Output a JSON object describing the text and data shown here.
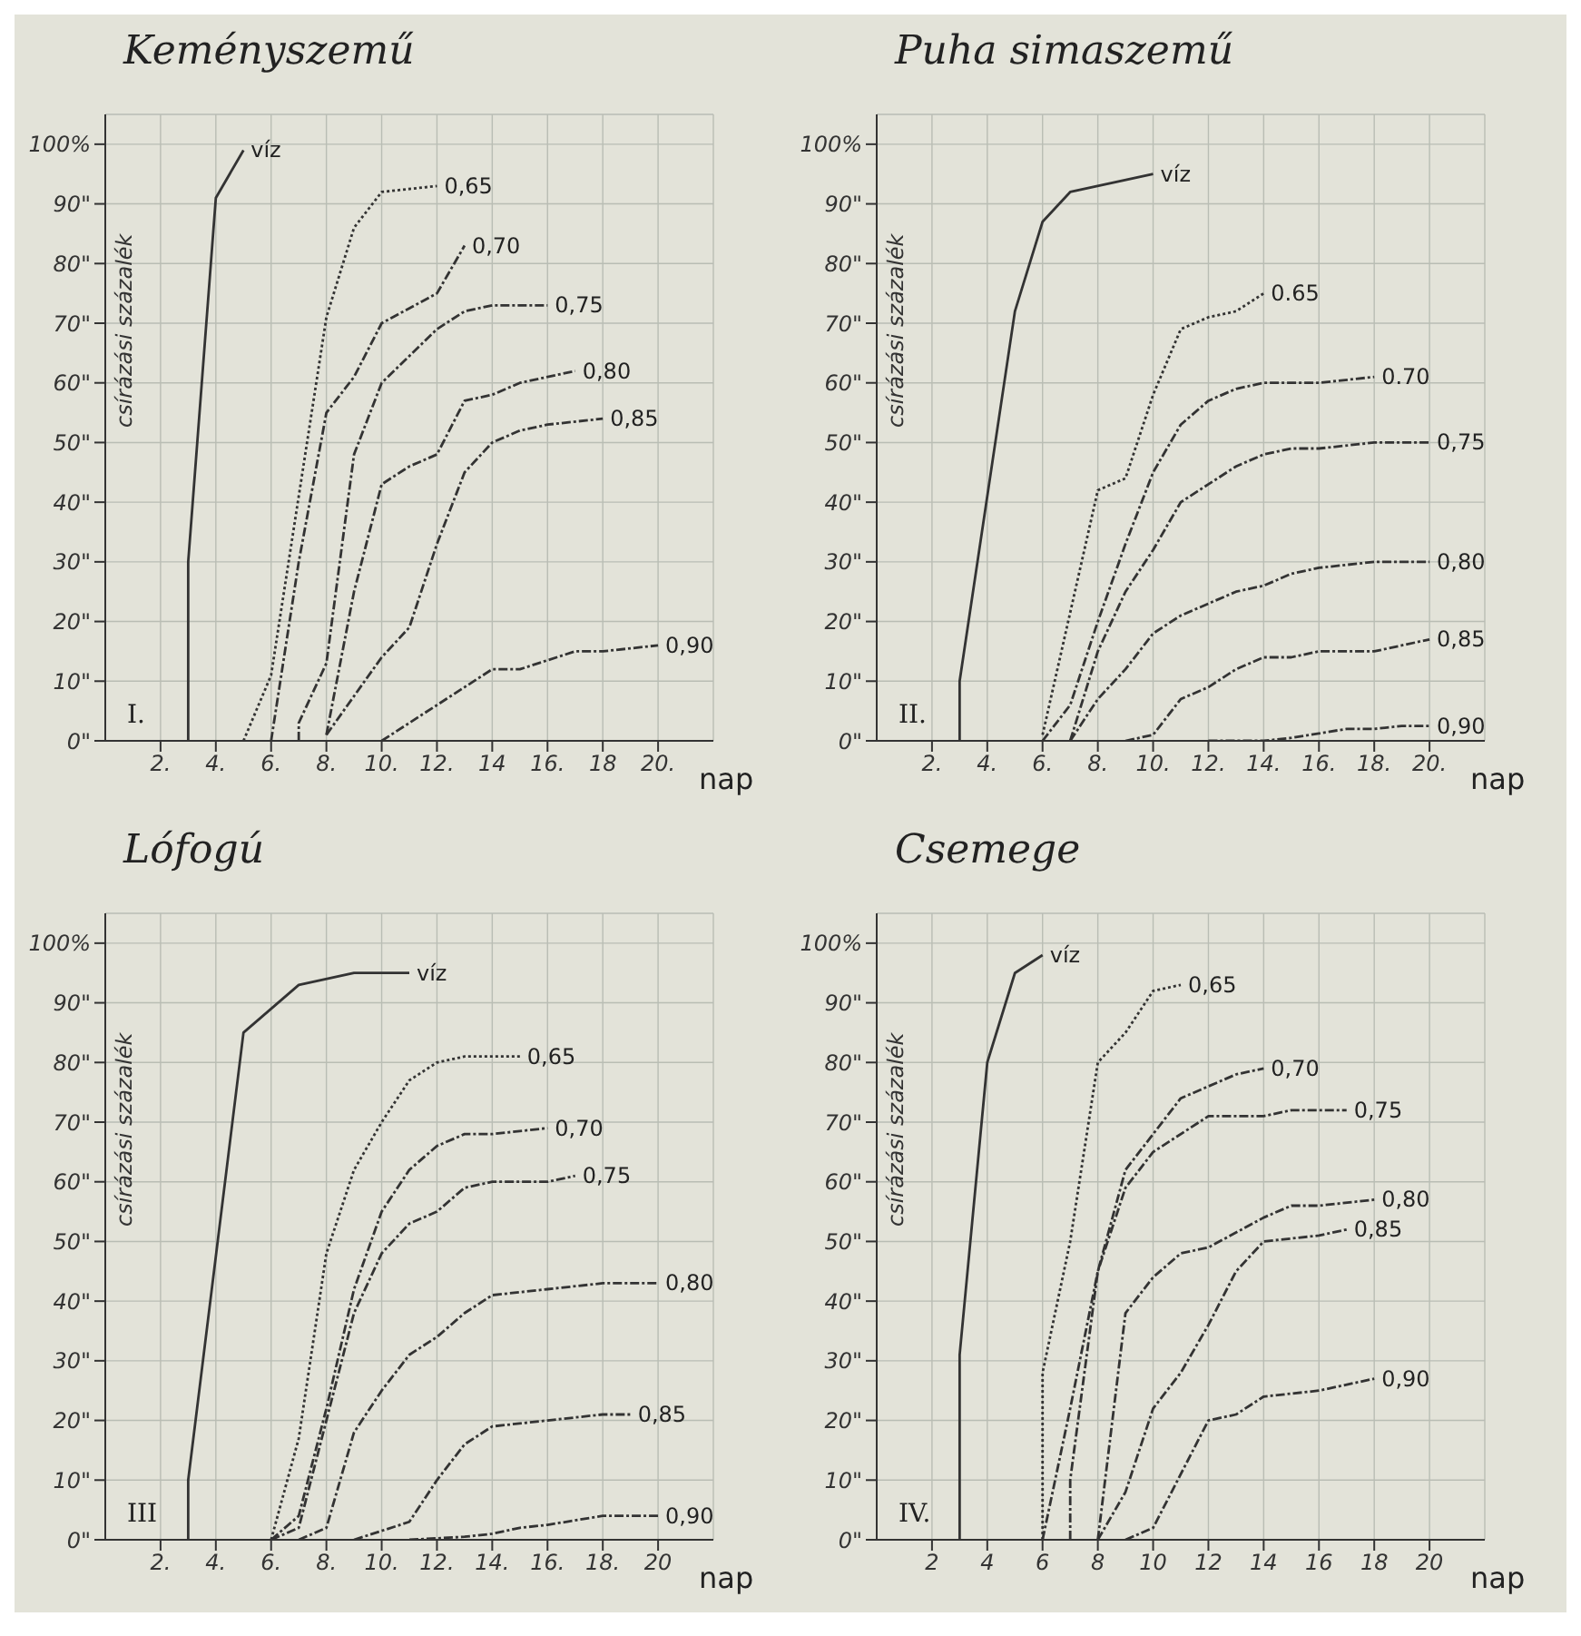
{
  "chart_data": [
    {
      "type": "line",
      "title": "Keményszemű",
      "xlabel": "nap",
      "ylabel": "csírázási százalék",
      "annotations": [
        "I."
      ],
      "grid": true,
      "xlim": [
        0,
        22
      ],
      "xticks": [
        {
          "value": 2,
          "label": "2."
        },
        {
          "value": 4,
          "label": "4."
        },
        {
          "value": 6,
          "label": "6."
        },
        {
          "value": 8,
          "label": "8."
        },
        {
          "value": 10,
          "label": "10."
        },
        {
          "value": 12,
          "label": "12."
        },
        {
          "value": 14,
          "label": "14"
        },
        {
          "value": 16,
          "label": "16."
        },
        {
          "value": 18,
          "label": "18"
        },
        {
          "value": 20,
          "label": "20."
        }
      ],
      "ylim": [
        0,
        105
      ],
      "yticks": [
        {
          "value": 0,
          "label": "0\""
        },
        {
          "value": 10,
          "label": "10\""
        },
        {
          "value": 20,
          "label": "20\""
        },
        {
          "value": 30,
          "label": "30\""
        },
        {
          "value": 40,
          "label": "40\""
        },
        {
          "value": 50,
          "label": "50\""
        },
        {
          "value": 60,
          "label": "60\""
        },
        {
          "value": 70,
          "label": "70\""
        },
        {
          "value": 80,
          "label": "80\""
        },
        {
          "value": 90,
          "label": "90\""
        },
        {
          "value": 100,
          "label": "100%"
        }
      ],
      "series": [
        {
          "name": "víz",
          "color": "#333333",
          "line_style": "solid",
          "x": [
            3,
            3,
            4,
            5
          ],
          "values": [
            0,
            30,
            91,
            99
          ]
        },
        {
          "name": "0,65",
          "color": "#333333",
          "line_style": "dotted",
          "x": [
            5,
            6,
            8,
            9,
            10,
            12
          ],
          "values": [
            0,
            11,
            71,
            86,
            92,
            93
          ]
        },
        {
          "name": "0,70",
          "color": "#333333",
          "line_style": "dashed",
          "x": [
            6,
            7,
            8,
            9,
            10,
            12,
            13
          ],
          "values": [
            0,
            30,
            55,
            61,
            70,
            75,
            83
          ]
        },
        {
          "name": "0,75",
          "color": "#333333",
          "line_style": "dashed",
          "x": [
            7,
            7,
            8,
            9,
            10,
            12,
            13,
            14,
            16
          ],
          "values": [
            0,
            3,
            13,
            48,
            60,
            69,
            72,
            73,
            73
          ]
        },
        {
          "name": "0,80",
          "color": "#333333",
          "line_style": "dashed",
          "x": [
            8,
            9,
            10,
            11,
            12,
            13,
            14,
            15,
            16,
            17
          ],
          "values": [
            1,
            25,
            43,
            46,
            48,
            57,
            58,
            60,
            61,
            62
          ]
        },
        {
          "name": "0,85",
          "color": "#333333",
          "line_style": "dashed",
          "x": [
            8,
            10,
            11,
            12,
            13,
            14,
            15,
            16,
            18
          ],
          "values": [
            1,
            14,
            19,
            33,
            45,
            50,
            52,
            53,
            54
          ]
        },
        {
          "name": "0,90",
          "color": "#333333",
          "line_style": "dashed",
          "x": [
            10,
            12,
            13,
            14,
            15,
            17,
            18,
            20
          ],
          "values": [
            0,
            6,
            9,
            12,
            12,
            15,
            15,
            16
          ]
        }
      ]
    },
    {
      "type": "line",
      "title": "Puha simaszemű",
      "xlabel": "nap",
      "ylabel": "csírázási százalék",
      "annotations": [
        "II."
      ],
      "grid": true,
      "xlim": [
        0,
        22
      ],
      "xticks": [
        {
          "value": 2,
          "label": "2."
        },
        {
          "value": 4,
          "label": "4."
        },
        {
          "value": 6,
          "label": "6."
        },
        {
          "value": 8,
          "label": "8."
        },
        {
          "value": 10,
          "label": "10."
        },
        {
          "value": 12,
          "label": "12."
        },
        {
          "value": 14,
          "label": "14."
        },
        {
          "value": 16,
          "label": "16."
        },
        {
          "value": 18,
          "label": "18."
        },
        {
          "value": 20,
          "label": "20."
        }
      ],
      "ylim": [
        0,
        105
      ],
      "yticks": [
        {
          "value": 0,
          "label": "0\""
        },
        {
          "value": 10,
          "label": "10\""
        },
        {
          "value": 20,
          "label": "20\""
        },
        {
          "value": 30,
          "label": "30\""
        },
        {
          "value": 40,
          "label": "40\""
        },
        {
          "value": 50,
          "label": "50\""
        },
        {
          "value": 60,
          "label": "60\""
        },
        {
          "value": 70,
          "label": "70\""
        },
        {
          "value": 80,
          "label": "80\""
        },
        {
          "value": 90,
          "label": "90\""
        },
        {
          "value": 100,
          "label": "100%"
        }
      ],
      "series": [
        {
          "name": "víz",
          "color": "#333333",
          "line_style": "solid",
          "x": [
            3,
            3,
            5,
            6,
            7,
            10
          ],
          "values": [
            0,
            10,
            72,
            87,
            92,
            95
          ]
        },
        {
          "name": "0.65",
          "color": "#333333",
          "line_style": "dotted",
          "x": [
            6,
            8,
            9,
            10,
            11,
            12,
            13,
            14
          ],
          "values": [
            1,
            42,
            44,
            58,
            69,
            71,
            72,
            75
          ]
        },
        {
          "name": "0.70",
          "color": "#333333",
          "line_style": "dashed",
          "x": [
            6,
            7,
            8,
            9,
            10,
            11,
            12,
            13,
            14,
            16,
            18
          ],
          "values": [
            0,
            6,
            20,
            33,
            45,
            53,
            57,
            59,
            60,
            60,
            61
          ]
        },
        {
          "name": "0,75",
          "color": "#333333",
          "line_style": "dashed",
          "x": [
            7,
            8,
            9,
            10,
            11,
            12,
            13,
            14,
            15,
            16,
            18,
            20
          ],
          "values": [
            0,
            15,
            25,
            32,
            40,
            43,
            46,
            48,
            49,
            49,
            50,
            50
          ]
        },
        {
          "name": "0,80",
          "color": "#333333",
          "line_style": "dashed",
          "x": [
            7,
            8,
            9,
            10,
            11,
            12,
            13,
            14,
            15,
            16,
            18,
            20
          ],
          "values": [
            0,
            7,
            12,
            18,
            21,
            23,
            25,
            26,
            28,
            29,
            30,
            30
          ]
        },
        {
          "name": "0,85",
          "color": "#333333",
          "line_style": "dashed",
          "x": [
            9,
            10,
            11,
            12,
            13,
            14,
            15,
            16,
            18,
            20
          ],
          "values": [
            0,
            1,
            7,
            9,
            12,
            14,
            14,
            15,
            15,
            17
          ]
        },
        {
          "name": "0,90",
          "color": "#333333",
          "line_style": "dashed",
          "x": [
            12,
            14,
            15,
            17,
            18,
            19,
            20
          ],
          "values": [
            0,
            0,
            0.5,
            2,
            2,
            2.5,
            2.5
          ]
        }
      ]
    },
    {
      "type": "line",
      "title": "Lófogú",
      "xlabel": "nap",
      "ylabel": "csírázási százalék",
      "annotations": [
        "III"
      ],
      "grid": true,
      "xlim": [
        0,
        22
      ],
      "xticks": [
        {
          "value": 2,
          "label": "2."
        },
        {
          "value": 4,
          "label": "4."
        },
        {
          "value": 6,
          "label": "6."
        },
        {
          "value": 8,
          "label": "8."
        },
        {
          "value": 10,
          "label": "10."
        },
        {
          "value": 12,
          "label": "12."
        },
        {
          "value": 14,
          "label": "14."
        },
        {
          "value": 16,
          "label": "16."
        },
        {
          "value": 18,
          "label": "18."
        },
        {
          "value": 20,
          "label": "20"
        }
      ],
      "ylim": [
        0,
        105
      ],
      "yticks": [
        {
          "value": 0,
          "label": "0\""
        },
        {
          "value": 10,
          "label": "10\""
        },
        {
          "value": 20,
          "label": "20\""
        },
        {
          "value": 30,
          "label": "30\""
        },
        {
          "value": 40,
          "label": "40\""
        },
        {
          "value": 50,
          "label": "50\""
        },
        {
          "value": 60,
          "label": "60\""
        },
        {
          "value": 70,
          "label": "70\""
        },
        {
          "value": 80,
          "label": "80\""
        },
        {
          "value": 90,
          "label": "90\""
        },
        {
          "value": 100,
          "label": "100%"
        }
      ],
      "series": [
        {
          "name": "víz",
          "color": "#333333",
          "line_style": "solid",
          "x": [
            3,
            3,
            5,
            6,
            7,
            9,
            11
          ],
          "values": [
            0,
            10,
            85,
            89,
            93,
            95,
            95
          ]
        },
        {
          "name": "0,65",
          "color": "#333333",
          "line_style": "dotted",
          "x": [
            6,
            7,
            8,
            9,
            10,
            11,
            12,
            13,
            15
          ],
          "values": [
            0,
            17,
            48,
            62,
            70,
            77,
            80,
            81,
            81
          ]
        },
        {
          "name": "0,70",
          "color": "#333333",
          "line_style": "dashed",
          "x": [
            6,
            7,
            8,
            9,
            10,
            11,
            12,
            13,
            14,
            16
          ],
          "values": [
            0,
            4,
            22,
            42,
            55,
            62,
            66,
            68,
            68,
            69
          ]
        },
        {
          "name": "0,75",
          "color": "#333333",
          "line_style": "dashed",
          "x": [
            6,
            7,
            8,
            9,
            10,
            11,
            12,
            13,
            14,
            16,
            17
          ],
          "values": [
            0,
            2,
            20,
            38,
            48,
            53,
            55,
            59,
            60,
            60,
            61
          ]
        },
        {
          "name": "0,80",
          "color": "#333333",
          "line_style": "dashed",
          "x": [
            7,
            8,
            9,
            10,
            11,
            12,
            13,
            14,
            16,
            18,
            20
          ],
          "values": [
            0,
            2,
            18,
            25,
            31,
            34,
            38,
            41,
            42,
            43,
            43
          ]
        },
        {
          "name": "0,85",
          "color": "#333333",
          "line_style": "dashed",
          "x": [
            9,
            11,
            12,
            13,
            14,
            16,
            18,
            19
          ],
          "values": [
            0,
            3,
            10,
            16,
            19,
            20,
            21,
            21
          ]
        },
        {
          "name": "0,90",
          "color": "#333333",
          "line_style": "dashed",
          "x": [
            11,
            13,
            14,
            15,
            16,
            18,
            20
          ],
          "values": [
            0,
            0.5,
            1,
            2,
            2.5,
            4,
            4
          ]
        }
      ]
    },
    {
      "type": "line",
      "title": "Csemege",
      "xlabel": "nap",
      "ylabel": "csírázási százalék",
      "annotations": [
        "IV."
      ],
      "grid": true,
      "xlim": [
        0,
        22
      ],
      "xticks": [
        2,
        4,
        6,
        8,
        10,
        12,
        14,
        16,
        18,
        20
      ],
      "ylim": [
        0,
        105
      ],
      "yticks": [
        {
          "value": 0,
          "label": "0\""
        },
        {
          "value": 10,
          "label": "10\""
        },
        {
          "value": 20,
          "label": "20\""
        },
        {
          "value": 30,
          "label": "30\""
        },
        {
          "value": 40,
          "label": "40\""
        },
        {
          "value": 50,
          "label": "50\""
        },
        {
          "value": 60,
          "label": "60\""
        },
        {
          "value": 70,
          "label": "70\""
        },
        {
          "value": 80,
          "label": "80\""
        },
        {
          "value": 90,
          "label": "90\""
        },
        {
          "value": 100,
          "label": "100%"
        }
      ],
      "series": [
        {
          "name": "víz",
          "color": "#333333",
          "line_style": "solid",
          "x": [
            3,
            3,
            4,
            5,
            6
          ],
          "values": [
            0,
            31,
            80,
            95,
            98
          ]
        },
        {
          "name": "0,65",
          "color": "#333333",
          "line_style": "dotted",
          "x": [
            6,
            6,
            7,
            8,
            9,
            10,
            11
          ],
          "values": [
            0,
            28,
            50,
            80,
            85,
            92,
            93
          ]
        },
        {
          "name": "0,70",
          "color": "#333333",
          "line_style": "dashed",
          "x": [
            6,
            7,
            8,
            9,
            10,
            11,
            12,
            13,
            14
          ],
          "values": [
            0,
            22,
            45,
            62,
            68,
            74,
            76,
            78,
            79
          ]
        },
        {
          "name": "0,75",
          "color": "#333333",
          "line_style": "dashed",
          "x": [
            7,
            7,
            8,
            9,
            10,
            12,
            14,
            15,
            17
          ],
          "values": [
            0,
            10,
            45,
            59,
            65,
            71,
            71,
            72,
            72
          ]
        },
        {
          "name": "0,80",
          "color": "#333333",
          "line_style": "dashed",
          "x": [
            8,
            9,
            10,
            11,
            12,
            14,
            15,
            16,
            18
          ],
          "values": [
            0,
            38,
            44,
            48,
            49,
            54,
            56,
            56,
            57
          ]
        },
        {
          "name": "0,85",
          "color": "#333333",
          "line_style": "dashed",
          "x": [
            8,
            9,
            10,
            11,
            12,
            13,
            14,
            16,
            17
          ],
          "values": [
            0,
            8,
            22,
            28,
            36,
            45,
            50,
            51,
            52
          ]
        },
        {
          "name": "0,90",
          "color": "#333333",
          "line_style": "dashed",
          "x": [
            9,
            10,
            12,
            13,
            14,
            16,
            18
          ],
          "values": [
            0,
            2,
            20,
            21,
            24,
            25,
            27
          ]
        }
      ]
    }
  ]
}
